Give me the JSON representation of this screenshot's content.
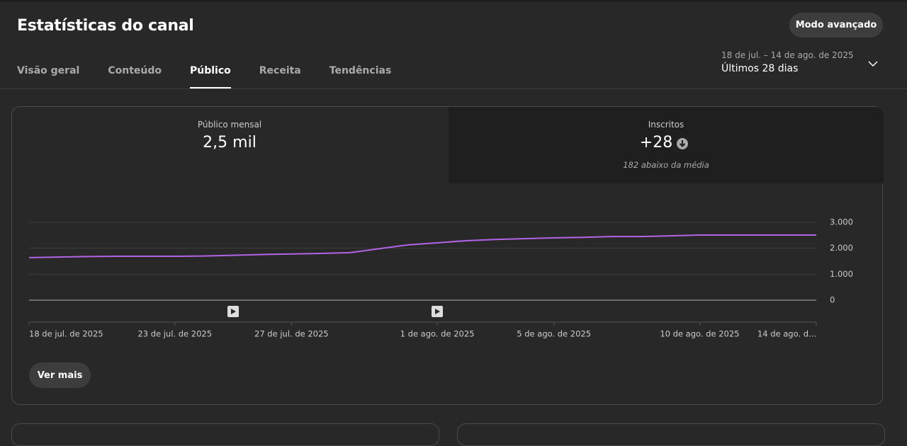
{
  "header": {
    "title": "Estatísticas do canal",
    "advanced_button": "Modo avançado"
  },
  "tabs": [
    "Visão geral",
    "Conteúdo",
    "Público",
    "Receita",
    "Tendências"
  ],
  "date_range": {
    "range": "18 de jul. – 14 de ago. de 2025",
    "label": "Últimos 28 dias"
  },
  "metrics": [
    {
      "label": "Público mensal",
      "value": "2,5 mil"
    },
    {
      "label": "Inscritos",
      "value": "+28",
      "note": "182 abaixo da média"
    }
  ],
  "more_button": "Ver mais",
  "chart_data": {
    "type": "line",
    "categories": [
      "18 de jul. de 2025",
      null,
      null,
      null,
      null,
      "23 de jul. de 2025",
      null,
      null,
      null,
      "27 de jul. de 2025",
      null,
      null,
      null,
      null,
      "1 de ago. de 2025",
      null,
      null,
      null,
      "5 de ago. de 2025",
      null,
      null,
      null,
      null,
      "10 de ago. de 2025",
      null,
      null,
      null,
      "14 de ago. d..."
    ],
    "values": [
      1640,
      1660,
      1680,
      1690,
      1690,
      1690,
      1700,
      1730,
      1760,
      1780,
      1800,
      1830,
      1980,
      2130,
      2210,
      2290,
      2340,
      2370,
      2400,
      2420,
      2450,
      2450,
      2480,
      2510,
      2510,
      2510,
      2510,
      2510
    ],
    "color": "#b364e6",
    "ylim": [
      0,
      3000
    ],
    "yticks": [
      0,
      {
        "value": 1000,
        "label": "1.000"
      },
      {
        "value": 2000,
        "label": "2.000"
      },
      {
        "value": 3000,
        "label": "3.000"
      }
    ],
    "grid": true
  }
}
